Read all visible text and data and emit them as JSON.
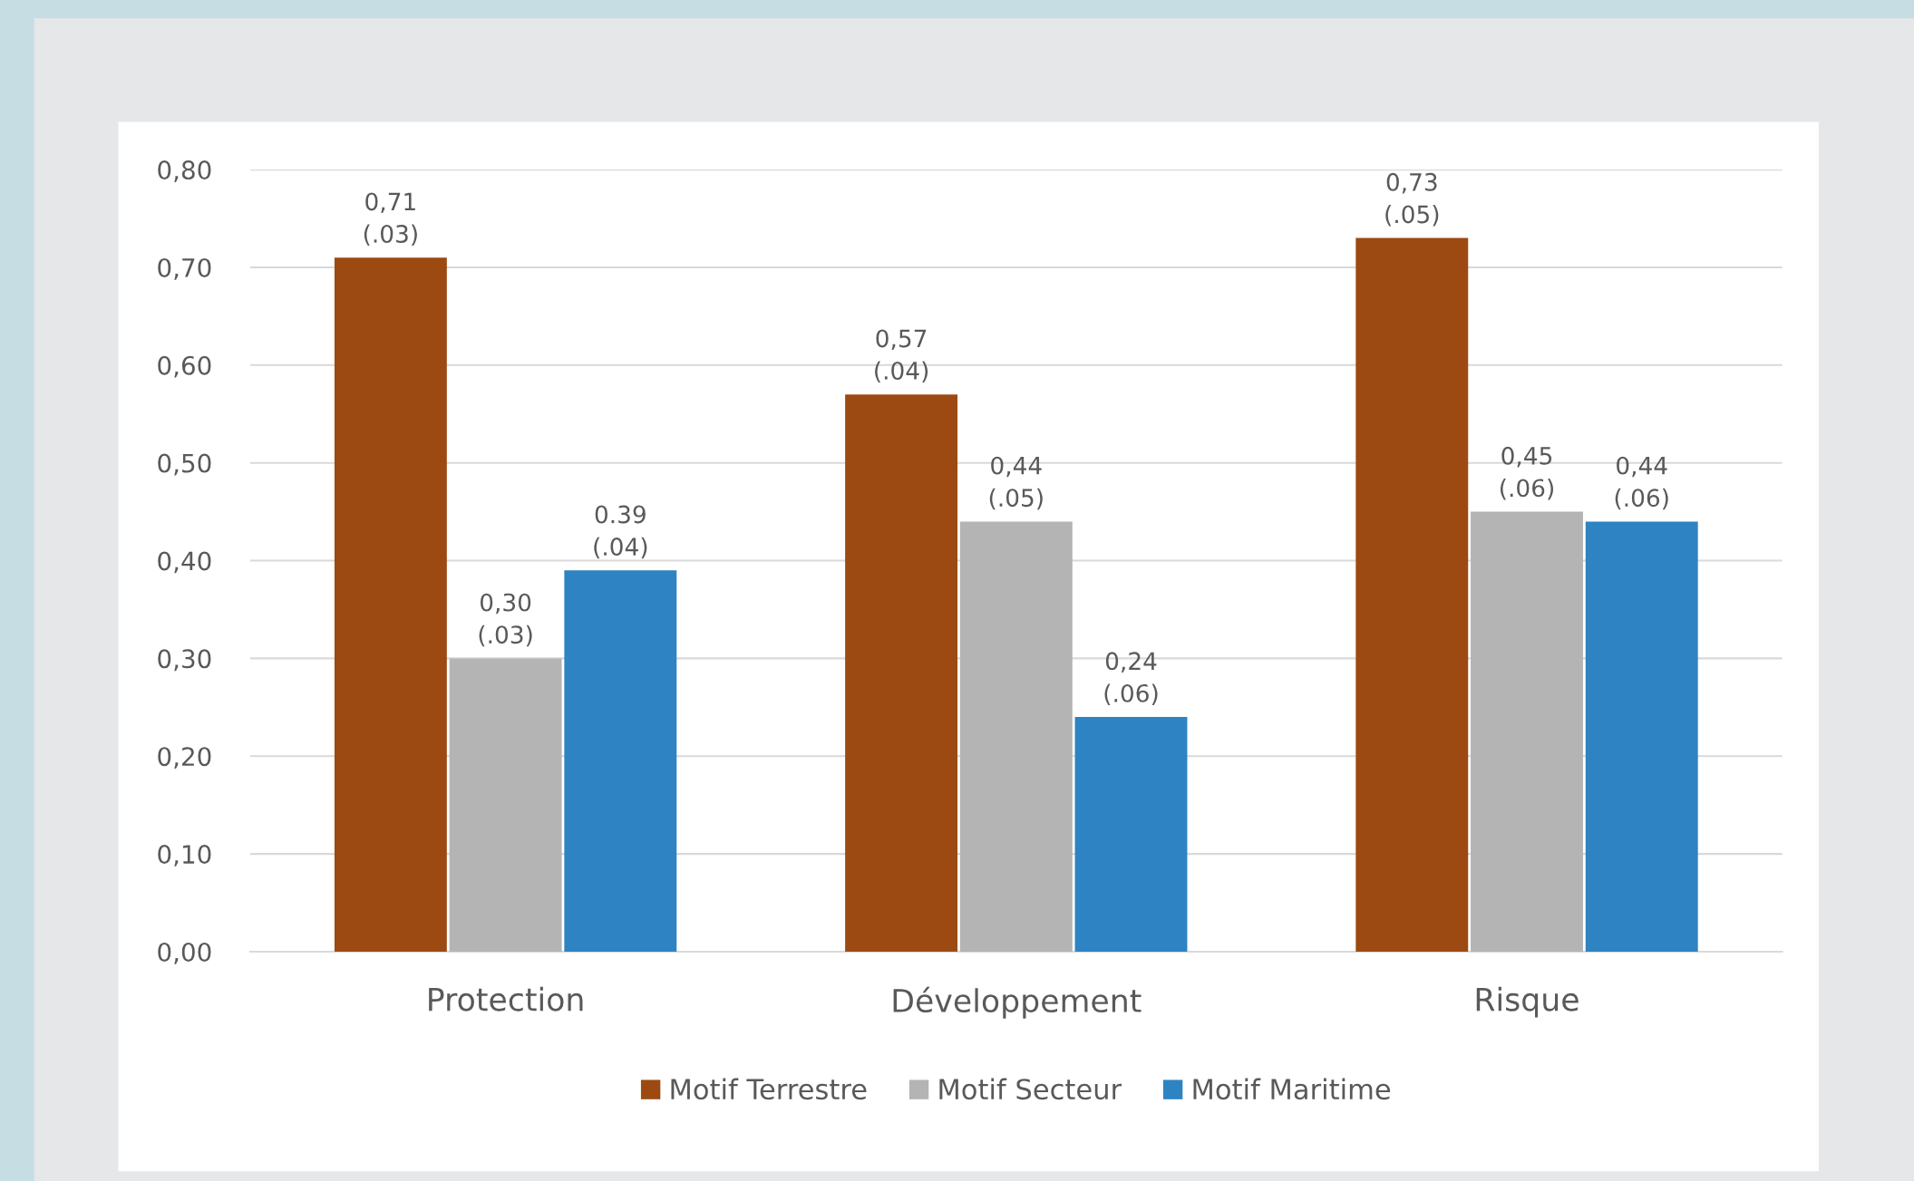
{
  "chart_data": {
    "type": "bar",
    "categories": [
      "Protection",
      "Développement",
      "Risque"
    ],
    "series": [
      {
        "name": "Motif Terrestre",
        "color": "#9c4a12",
        "values": [
          0.71,
          0.57,
          0.73
        ],
        "value_labels": [
          "0,71\n(.03)",
          "0,57\n(.04)",
          "0,73\n(.05)"
        ]
      },
      {
        "name": "Motif Secteur",
        "color": "#b4b4b4",
        "values": [
          0.3,
          0.44,
          0.45
        ],
        "value_labels": [
          "0,30\n(.03)",
          "0,44\n(.05)",
          "0,45\n(.06)"
        ]
      },
      {
        "name": "Motif Maritime",
        "color": "#2e83c2",
        "values": [
          0.39,
          0.24,
          0.44
        ],
        "value_labels": [
          "0.39\n(.04)",
          "0,24\n(.06)",
          "0,44\n(.06)"
        ]
      }
    ],
    "ylim": [
      0,
      0.8
    ],
    "yticks": [
      {
        "value": 0,
        "label": "0,00"
      },
      {
        "value": 0.1,
        "label": "0,10"
      },
      {
        "value": 0.2,
        "label": "0,20"
      },
      {
        "value": 0.3,
        "label": "0,30"
      },
      {
        "value": 0.4,
        "label": "0,40"
      },
      {
        "value": 0.5,
        "label": "0,50"
      },
      {
        "value": 0.6,
        "label": "0,60"
      },
      {
        "value": 0.7,
        "label": "0,70"
      },
      {
        "value": 0.8,
        "label": "0,80"
      }
    ],
    "grid": "y",
    "legend": "bottom"
  }
}
